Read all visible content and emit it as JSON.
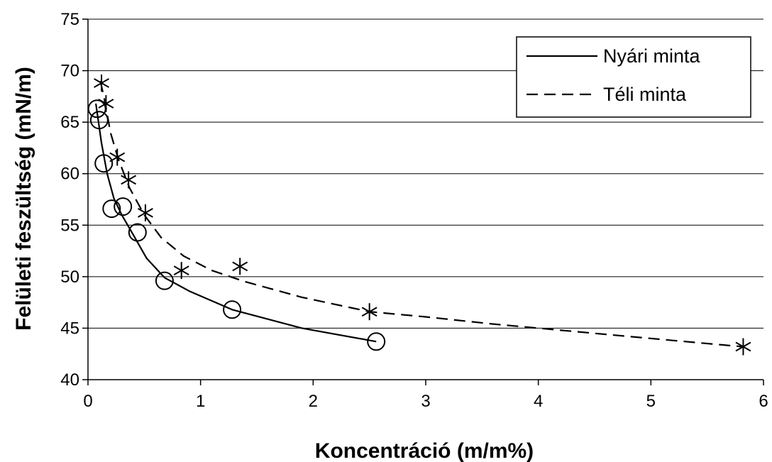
{
  "chart_data": {
    "type": "line",
    "title": "",
    "xlabel": "Koncentráció (m/m%)",
    "ylabel": "Felületi feszültség (mN/m)",
    "xlim": [
      0,
      6
    ],
    "ylim": [
      40,
      75
    ],
    "xticks": [
      "0",
      "1",
      "2",
      "3",
      "4",
      "5",
      "6"
    ],
    "yticks": [
      "40",
      "45",
      "50",
      "55",
      "60",
      "65",
      "70",
      "75"
    ],
    "grid": "horizontal",
    "legend_position": "top-right",
    "series": [
      {
        "name": "Nyári minta",
        "line_style": "solid",
        "marker": "circle",
        "points": [
          {
            "x": 0.08,
            "y": 66.3
          },
          {
            "x": 0.1,
            "y": 65.2
          },
          {
            "x": 0.14,
            "y": 61.0
          },
          {
            "x": 0.21,
            "y": 56.6
          },
          {
            "x": 0.31,
            "y": 56.8
          },
          {
            "x": 0.44,
            "y": 54.3
          },
          {
            "x": 0.68,
            "y": 49.6
          },
          {
            "x": 1.28,
            "y": 46.8
          },
          {
            "x": 2.56,
            "y": 43.7
          }
        ],
        "curve": [
          {
            "x": 0.07,
            "y": 66.8
          },
          {
            "x": 0.12,
            "y": 63.0
          },
          {
            "x": 0.17,
            "y": 60.0
          },
          {
            "x": 0.23,
            "y": 57.6
          },
          {
            "x": 0.3,
            "y": 56.0
          },
          {
            "x": 0.4,
            "y": 54.1
          },
          {
            "x": 0.52,
            "y": 51.8
          },
          {
            "x": 0.68,
            "y": 49.9
          },
          {
            "x": 0.9,
            "y": 48.6
          },
          {
            "x": 1.28,
            "y": 46.8
          },
          {
            "x": 1.9,
            "y": 45.0
          },
          {
            "x": 2.56,
            "y": 43.7
          }
        ]
      },
      {
        "name": "Téli minta",
        "line_style": "dashed",
        "marker": "asterisk",
        "points": [
          {
            "x": 0.12,
            "y": 68.8
          },
          {
            "x": 0.16,
            "y": 66.8
          },
          {
            "x": 0.26,
            "y": 61.6
          },
          {
            "x": 0.36,
            "y": 59.4
          },
          {
            "x": 0.51,
            "y": 56.2
          },
          {
            "x": 0.83,
            "y": 50.6
          },
          {
            "x": 1.35,
            "y": 51.0
          },
          {
            "x": 2.5,
            "y": 46.6
          },
          {
            "x": 5.82,
            "y": 43.2
          }
        ],
        "curve": [
          {
            "x": 0.11,
            "y": 69.0
          },
          {
            "x": 0.15,
            "y": 67.0
          },
          {
            "x": 0.2,
            "y": 64.0
          },
          {
            "x": 0.27,
            "y": 61.4
          },
          {
            "x": 0.37,
            "y": 58.6
          },
          {
            "x": 0.5,
            "y": 56.0
          },
          {
            "x": 0.65,
            "y": 53.8
          },
          {
            "x": 0.85,
            "y": 52.0
          },
          {
            "x": 1.1,
            "y": 50.6
          },
          {
            "x": 1.4,
            "y": 49.5
          },
          {
            "x": 1.9,
            "y": 48.0
          },
          {
            "x": 2.5,
            "y": 46.6
          },
          {
            "x": 3.0,
            "y": 46.1
          },
          {
            "x": 3.6,
            "y": 45.4
          },
          {
            "x": 4.5,
            "y": 44.5
          },
          {
            "x": 5.2,
            "y": 43.8
          },
          {
            "x": 5.82,
            "y": 43.2
          }
        ]
      }
    ]
  }
}
